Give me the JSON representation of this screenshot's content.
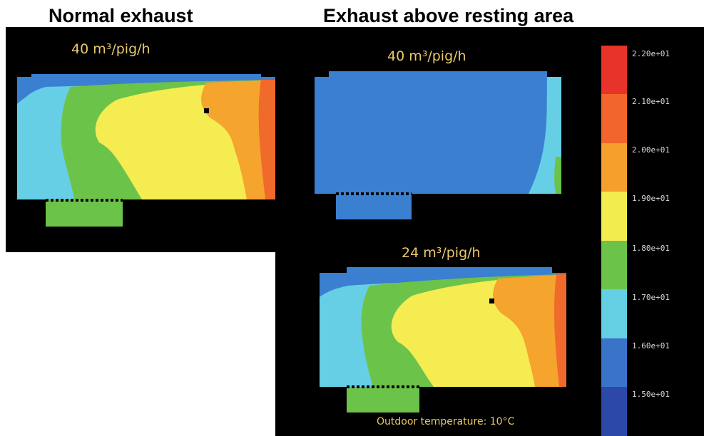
{
  "headings": {
    "left": "Normal exhaust",
    "right": "Exhaust above resting area"
  },
  "flows": {
    "normal": "40 m³/pig/h",
    "above_high": "40 m³/pig/h",
    "above_low": "24 m³/pig/h"
  },
  "outdoor_temperature": "Outdoor temperature: 10°C",
  "colorbar": {
    "ticks": [
      "2.20e+01",
      "2.10e+01",
      "2.00e+01",
      "1.90e+01",
      "1.80e+01",
      "1.70e+01",
      "1.60e+01",
      "1.50e+01"
    ],
    "colors": [
      "#e8332a",
      "#f2662d",
      "#f5a02c",
      "#f3ec4f",
      "#6cc34a",
      "#64cfe3",
      "#3a74c9",
      "#2c49a8"
    ]
  },
  "contour_colors": {
    "c15": "#2f4fb0",
    "c16": "#3b7fd0",
    "c17": "#66cfe6",
    "c18": "#6cc34a",
    "c19": "#f5ec52",
    "c20": "#f5a42e",
    "c21": "#f06a2c",
    "c22": "#e8332a"
  }
}
